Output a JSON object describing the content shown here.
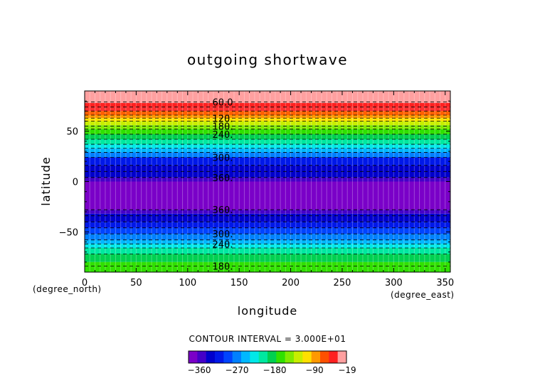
{
  "chart_data": {
    "type": "heatmap",
    "title": "outgoing shortwave",
    "xlabel": "longitude",
    "ylabel": "latitude",
    "x_units": "(degree_east)",
    "y_units": "(degree_north)",
    "xlim": [
      0,
      355
    ],
    "ylim": [
      -90,
      90
    ],
    "x_ticks": [
      0,
      50,
      100,
      150,
      200,
      250,
      300,
      350
    ],
    "y_ticks": [
      -50,
      0,
      50
    ],
    "contour_interval_text": "CONTOUR INTERVAL = 3.000E+01",
    "colorbar_ticks": [
      "−360",
      "−270",
      "−180",
      "−90",
      "−19"
    ],
    "colorbar_colors": [
      "#7a00c8",
      "#4400c8",
      "#0000cc",
      "#0018e8",
      "#0044ff",
      "#0080ff",
      "#00b8ff",
      "#00e8e8",
      "#00e8a0",
      "#00d050",
      "#30e000",
      "#80ea00",
      "#c8ee00",
      "#ffe000",
      "#ff9900",
      "#ff5000",
      "#ff2020",
      "#ffa0a0"
    ],
    "bands": [
      {
        "lat_min": 78,
        "lat_max": 90,
        "color": "#ffa0a0"
      },
      {
        "lat_min": 74,
        "lat_max": 78,
        "color": "#ff2020"
      },
      {
        "lat_min": 70,
        "lat_max": 74,
        "color": "#ff3030"
      },
      {
        "lat_min": 66,
        "lat_max": 70,
        "color": "#ff6000"
      },
      {
        "lat_min": 63,
        "lat_max": 66,
        "color": "#ff9900"
      },
      {
        "lat_min": 60,
        "lat_max": 63,
        "color": "#ffe000"
      },
      {
        "lat_min": 56,
        "lat_max": 60,
        "color": "#c8ee00"
      },
      {
        "lat_min": 52,
        "lat_max": 56,
        "color": "#80ea00"
      },
      {
        "lat_min": 47,
        "lat_max": 52,
        "color": "#30e000"
      },
      {
        "lat_min": 42,
        "lat_max": 47,
        "color": "#00d050"
      },
      {
        "lat_min": 37,
        "lat_max": 42,
        "color": "#00e8a0"
      },
      {
        "lat_min": 33,
        "lat_max": 37,
        "color": "#00e8e8"
      },
      {
        "lat_min": 29,
        "lat_max": 33,
        "color": "#00b8ff"
      },
      {
        "lat_min": 24,
        "lat_max": 29,
        "color": "#0080ff"
      },
      {
        "lat_min": 16,
        "lat_max": 24,
        "color": "#0018e8"
      },
      {
        "lat_min": 4,
        "lat_max": 16,
        "color": "#0000cc"
      },
      {
        "lat_min": 0,
        "lat_max": 4,
        "color": "#4400c8"
      },
      {
        "lat_min": -28,
        "lat_max": 0,
        "color": "#7a00c8"
      },
      {
        "lat_min": -32,
        "lat_max": -28,
        "color": "#4400c8"
      },
      {
        "lat_min": -40,
        "lat_max": -32,
        "color": "#0000cc"
      },
      {
        "lat_min": -46,
        "lat_max": -40,
        "color": "#0018e8"
      },
      {
        "lat_min": -52,
        "lat_max": -46,
        "color": "#0044ff"
      },
      {
        "lat_min": -58,
        "lat_max": -52,
        "color": "#0080ff"
      },
      {
        "lat_min": -62,
        "lat_max": -58,
        "color": "#00b8ff"
      },
      {
        "lat_min": -66,
        "lat_max": -62,
        "color": "#00e8e8"
      },
      {
        "lat_min": -72,
        "lat_max": -66,
        "color": "#00e8a0"
      },
      {
        "lat_min": -80,
        "lat_max": -72,
        "color": "#00d050"
      },
      {
        "lat_min": -90,
        "lat_max": -80,
        "color": "#30e000"
      }
    ],
    "contours": [
      {
        "lat": 79,
        "label": "60.0"
      },
      {
        "lat": 74,
        "label": ""
      },
      {
        "lat": 70,
        "label": ""
      },
      {
        "lat": 66,
        "label": ""
      },
      {
        "lat": 63,
        "label": "120."
      },
      {
        "lat": 60,
        "label": ""
      },
      {
        "lat": 55,
        "label": "180."
      },
      {
        "lat": 52,
        "label": ""
      },
      {
        "lat": 47,
        "label": "240."
      },
      {
        "lat": 42,
        "label": ""
      },
      {
        "lat": 37,
        "label": ""
      },
      {
        "lat": 33,
        "label": ""
      },
      {
        "lat": 29,
        "label": ""
      },
      {
        "lat": 24,
        "label": "300."
      },
      {
        "lat": 16,
        "label": ""
      },
      {
        "lat": 10,
        "label": ""
      },
      {
        "lat": 4,
        "label": "360."
      },
      {
        "lat": -28,
        "label": "360."
      },
      {
        "lat": -34,
        "label": ""
      },
      {
        "lat": -40,
        "label": ""
      },
      {
        "lat": -46,
        "label": ""
      },
      {
        "lat": -52,
        "label": "300."
      },
      {
        "lat": -58,
        "label": ""
      },
      {
        "lat": -62,
        "label": "240."
      },
      {
        "lat": -66,
        "label": ""
      },
      {
        "lat": -72,
        "label": ""
      },
      {
        "lat": -84,
        "label": "180."
      }
    ]
  }
}
